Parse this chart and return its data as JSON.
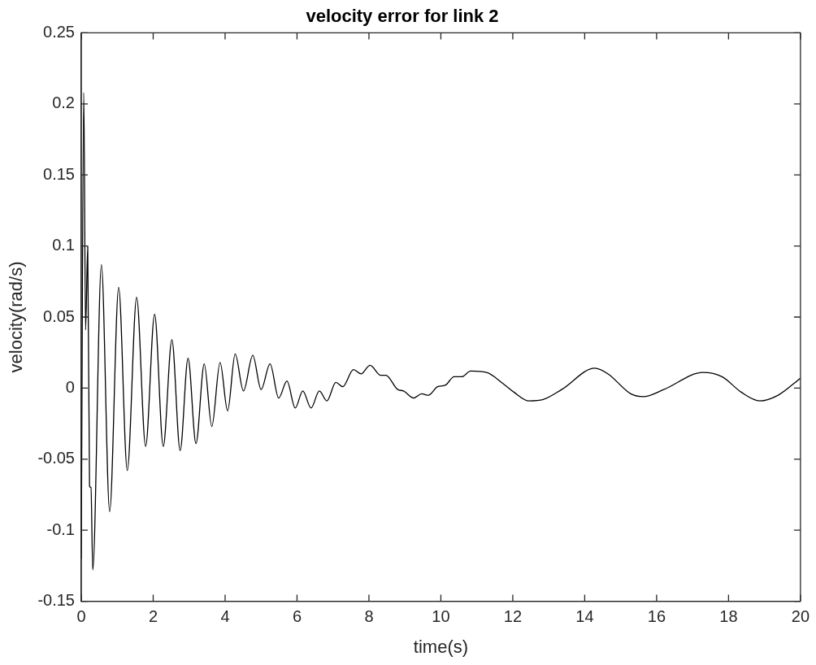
{
  "chart_data": {
    "type": "line",
    "title": "velocity error for link 2",
    "xlabel": "time(s)",
    "ylabel": "velocity(rad/s)",
    "xlim": [
      0,
      20
    ],
    "xticks": [
      0,
      2,
      4,
      6,
      8,
      10,
      12,
      14,
      16,
      18,
      20
    ],
    "ylim": [
      -0.15,
      0.25
    ],
    "yticks": [
      -0.15,
      -0.1,
      -0.05,
      0,
      0.05,
      0.1,
      0.15,
      0.2,
      0.25
    ],
    "grid": false,
    "legend": false,
    "series": [
      {
        "color": "#000000",
        "x": [
          0,
          0.07,
          0.12,
          0.18,
          0.23,
          0.27,
          0.32,
          0.56,
          0.79,
          1.04,
          1.28,
          1.54,
          1.79,
          2.04,
          2.28,
          2.52,
          2.75,
          2.97,
          3.19,
          3.42,
          3.63,
          3.86,
          4.07,
          4.28,
          4.51,
          4.77,
          5.0,
          5.25,
          5.49,
          5.72,
          5.95,
          6.16,
          6.39,
          6.62,
          6.83,
          7.08,
          7.27,
          7.57,
          7.78,
          8.03,
          8.33,
          8.47,
          8.8,
          8.96,
          9.24,
          9.47,
          9.65,
          9.91,
          10.12,
          10.37,
          10.58,
          10.83,
          11.27,
          11.74,
          12.04,
          12.45,
          12.85,
          13.36,
          14.28,
          14.65,
          15.28,
          15.63,
          16.2,
          17.29,
          17.82,
          18.36,
          18.87,
          19.38,
          20
        ],
        "values": [
          -0.12,
          0.208,
          0.041,
          0.1,
          -0.069,
          -0.07,
          -0.128,
          0.087,
          -0.087,
          0.071,
          -0.058,
          0.064,
          -0.041,
          0.052,
          -0.041,
          0.034,
          -0.044,
          0.021,
          -0.039,
          0.017,
          -0.027,
          0.018,
          -0.016,
          0.024,
          -0.002,
          0.023,
          -0.001,
          0.017,
          -0.007,
          0.005,
          -0.014,
          -0.002,
          -0.014,
          -0.002,
          -0.009,
          0.004,
          0.001,
          0.013,
          0.01,
          0.016,
          0.009,
          0.009,
          -0.001,
          -0.002,
          -0.007,
          -0.004,
          -0.005,
          0.001,
          0.002,
          0.008,
          0.008,
          0.012,
          0.011,
          0.003,
          -0.003,
          -0.009,
          -0.008,
          -0.001,
          0.014,
          0.01,
          -0.004,
          -0.006,
          -0.001,
          0.011,
          0.008,
          -0.003,
          -0.009,
          -0.005,
          0.007
        ]
      }
    ]
  }
}
